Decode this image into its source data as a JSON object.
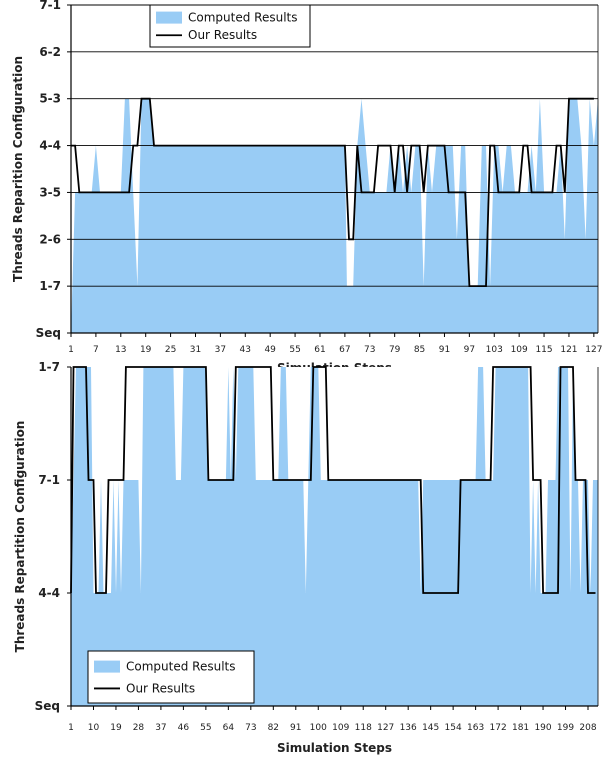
{
  "chart_data": [
    {
      "type": "area",
      "xlabel": "Simulation Steps",
      "ylabel": "Threads Reparition Configuration",
      "y_ticks": [
        "Seq",
        "1-7",
        "2-6",
        "3-5",
        "4-4",
        "5-3",
        "6-2",
        "7-1"
      ],
      "x_ticks": [
        "1",
        "7",
        "13",
        "19",
        "25",
        "31",
        "37",
        "43",
        "49",
        "55",
        "61",
        "67",
        "73",
        "79",
        "85",
        "91",
        "97",
        "103",
        "109",
        "115",
        "121",
        "127"
      ],
      "x_range": [
        1,
        128
      ],
      "grid": true,
      "legend_position": "top-center",
      "colors": {
        "computed": "#99ccf5",
        "ours": "#000000"
      },
      "series": [
        {
          "name": "Computed Results",
          "points": [
            [
              1,
              0
            ],
            [
              2,
              3
            ],
            [
              3,
              3
            ],
            [
              6,
              3
            ],
            [
              7,
              4
            ],
            [
              8,
              3
            ],
            [
              13,
              3
            ],
            [
              14,
              5
            ],
            [
              15,
              5
            ],
            [
              16,
              3
            ],
            [
              17,
              1
            ],
            [
              18,
              5
            ],
            [
              20,
              5
            ],
            [
              21,
              4
            ],
            [
              67,
              4
            ],
            [
              67.5,
              1
            ],
            [
              69,
              1
            ],
            [
              70,
              4
            ],
            [
              71,
              5
            ],
            [
              72,
              4
            ],
            [
              73,
              3
            ],
            [
              77,
              3
            ],
            [
              78,
              4
            ],
            [
              79,
              3
            ],
            [
              80,
              4
            ],
            [
              81,
              3
            ],
            [
              82,
              4
            ],
            [
              83,
              3
            ],
            [
              84,
              4
            ],
            [
              85,
              4
            ],
            [
              86,
              1
            ],
            [
              87,
              4
            ],
            [
              88,
              3
            ],
            [
              89,
              4
            ],
            [
              93,
              4
            ],
            [
              94,
              2
            ],
            [
              95,
              4
            ],
            [
              96,
              4
            ],
            [
              97,
              1
            ],
            [
              99,
              1
            ],
            [
              100,
              4
            ],
            [
              101,
              4
            ],
            [
              102,
              1
            ],
            [
              103,
              4
            ],
            [
              104,
              4
            ],
            [
              105,
              3
            ],
            [
              106,
              4
            ],
            [
              107,
              4
            ],
            [
              108,
              3
            ],
            [
              111,
              3
            ],
            [
              112,
              4
            ],
            [
              113,
              3
            ],
            [
              114,
              5
            ],
            [
              115,
              3
            ],
            [
              118,
              3
            ],
            [
              119,
              4
            ],
            [
              120,
              2
            ],
            [
              121,
              5
            ],
            [
              122,
              5
            ],
            [
              123,
              5
            ],
            [
              124,
              4
            ],
            [
              125,
              2
            ],
            [
              126,
              5
            ],
            [
              127,
              4
            ],
            [
              128,
              5
            ]
          ]
        },
        {
          "name": "Our Results",
          "points": [
            [
              1,
              4
            ],
            [
              2,
              4
            ],
            [
              3,
              3
            ],
            [
              15,
              3
            ],
            [
              16,
              4
            ],
            [
              17,
              4
            ],
            [
              18,
              5
            ],
            [
              20,
              5
            ],
            [
              21,
              4
            ],
            [
              67,
              4
            ],
            [
              68,
              2
            ],
            [
              69,
              2
            ],
            [
              70,
              4
            ],
            [
              71,
              3
            ],
            [
              74,
              3
            ],
            [
              75,
              4
            ],
            [
              78,
              4
            ],
            [
              79,
              3
            ],
            [
              80,
              4
            ],
            [
              81,
              4
            ],
            [
              82,
              3
            ],
            [
              83,
              4
            ],
            [
              85,
              4
            ],
            [
              86,
              3
            ],
            [
              87,
              4
            ],
            [
              91,
              4
            ],
            [
              92,
              3
            ],
            [
              96,
              3
            ],
            [
              97,
              1
            ],
            [
              101,
              1
            ],
            [
              102,
              4
            ],
            [
              103,
              4
            ],
            [
              104,
              3
            ],
            [
              109,
              3
            ],
            [
              110,
              4
            ],
            [
              111,
              4
            ],
            [
              112,
              3
            ],
            [
              117,
              3
            ],
            [
              118,
              4
            ],
            [
              119,
              4
            ],
            [
              120,
              3
            ],
            [
              121,
              5
            ],
            [
              127,
              5
            ]
          ]
        }
      ]
    },
    {
      "type": "area",
      "xlabel": "Simulation Steps",
      "ylabel": "Threads Repartition Configuration",
      "y_ticks": [
        "Seq",
        "4-4",
        "7-1",
        "1-7"
      ],
      "x_ticks": [
        "1",
        "10",
        "19",
        "28",
        "37",
        "46",
        "55",
        "64",
        "73",
        "82",
        "91",
        "100",
        "109",
        "118",
        "127",
        "136",
        "145",
        "154",
        "163",
        "172",
        "181",
        "190",
        "199",
        "208"
      ],
      "x_range": [
        1,
        212
      ],
      "grid": false,
      "legend_position": "bottom-left",
      "colors": {
        "computed": "#99ccf5",
        "ours": "#000000"
      },
      "series": [
        {
          "name": "Computed Results",
          "points": [
            [
              1,
              1
            ],
            [
              3,
              3
            ],
            [
              9,
              3
            ],
            [
              10,
              1
            ],
            [
              12,
              1
            ],
            [
              13,
              2
            ],
            [
              14,
              1
            ],
            [
              17,
              1
            ],
            [
              18,
              2
            ],
            [
              19,
              1
            ],
            [
              20,
              2
            ],
            [
              21,
              1
            ],
            [
              22,
              2
            ],
            [
              28,
              2
            ],
            [
              29,
              1
            ],
            [
              30,
              3
            ],
            [
              42,
              3
            ],
            [
              43,
              2
            ],
            [
              45,
              2
            ],
            [
              46,
              3
            ],
            [
              55,
              3
            ],
            [
              56,
              2
            ],
            [
              63,
              2
            ],
            [
              64,
              3
            ],
            [
              65,
              2
            ],
            [
              66,
              3
            ],
            [
              67,
              2
            ],
            [
              68,
              3
            ],
            [
              74,
              3
            ],
            [
              75,
              2
            ],
            [
              84,
              2
            ],
            [
              85,
              3
            ],
            [
              87,
              3
            ],
            [
              88,
              2
            ],
            [
              94,
              2
            ],
            [
              95,
              1
            ],
            [
              96,
              2
            ],
            [
              97,
              3
            ],
            [
              100,
              3
            ],
            [
              101,
              2
            ],
            [
              140,
              2
            ],
            [
              141,
              1
            ],
            [
              142,
              2
            ],
            [
              163,
              2
            ],
            [
              164,
              3
            ],
            [
              166,
              3
            ],
            [
              167,
              2
            ],
            [
              170,
              2
            ],
            [
              171,
              3
            ],
            [
              184,
              3
            ],
            [
              185,
              1
            ],
            [
              186,
              2
            ],
            [
              187,
              1
            ],
            [
              188,
              2
            ],
            [
              189,
              1
            ],
            [
              190,
              1
            ],
            [
              191,
              1
            ],
            [
              192,
              2
            ],
            [
              195,
              2
            ],
            [
              196,
              3
            ],
            [
              200,
              3
            ],
            [
              201,
              1
            ],
            [
              202,
              3
            ],
            [
              203,
              2
            ],
            [
              204,
              2
            ],
            [
              205,
              1
            ],
            [
              206,
              2
            ],
            [
              208,
              2
            ],
            [
              209,
              1
            ],
            [
              210,
              2
            ],
            [
              212,
              2
            ]
          ]
        },
        {
          "name": "Our Results",
          "points": [
            [
              1,
              1
            ],
            [
              2,
              3
            ],
            [
              7,
              3
            ],
            [
              8,
              2
            ],
            [
              10,
              2
            ],
            [
              11,
              1
            ],
            [
              15,
              1
            ],
            [
              16,
              2
            ],
            [
              22,
              2
            ],
            [
              23,
              3
            ],
            [
              55,
              3
            ],
            [
              56,
              2
            ],
            [
              66,
              2
            ],
            [
              67,
              3
            ],
            [
              81,
              3
            ],
            [
              82,
              2
            ],
            [
              97,
              2
            ],
            [
              98,
              3
            ],
            [
              103,
              3
            ],
            [
              104,
              2
            ],
            [
              141,
              2
            ],
            [
              142,
              1
            ],
            [
              156,
              1
            ],
            [
              157,
              2
            ],
            [
              169,
              2
            ],
            [
              170,
              3
            ],
            [
              185,
              3
            ],
            [
              186,
              2
            ],
            [
              189,
              2
            ],
            [
              190,
              1
            ],
            [
              196,
              1
            ],
            [
              197,
              3
            ],
            [
              202,
              3
            ],
            [
              203,
              2
            ],
            [
              207,
              2
            ],
            [
              208,
              1
            ],
            [
              211,
              1
            ]
          ]
        }
      ]
    }
  ]
}
